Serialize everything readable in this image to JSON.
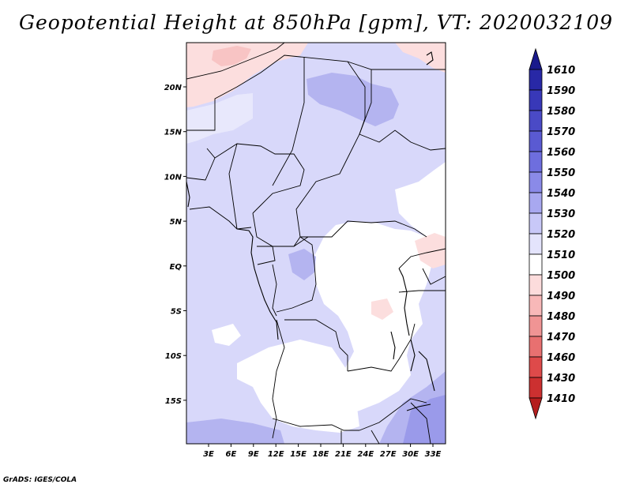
{
  "title": "Geopotential Height at 850hPa [gpm], VT: 2020032109",
  "credit": "GrADS: IGES/COLA",
  "lat_ticks": [
    "20N",
    "15N",
    "10N",
    "5N",
    "EQ",
    "5S",
    "10S",
    "15S"
  ],
  "lon_ticks": [
    "3E",
    "6E",
    "9E",
    "12E",
    "15E",
    "18E",
    "21E",
    "24E",
    "27E",
    "30E",
    "33E"
  ],
  "colorbar": {
    "levels": [
      "1610",
      "1590",
      "1580",
      "1570",
      "1560",
      "1550",
      "1540",
      "1530",
      "1520",
      "1510",
      "1500",
      "1490",
      "1480",
      "1470",
      "1460",
      "1430",
      "1410"
    ],
    "colors": [
      "#1a1a8c",
      "#2828a6",
      "#3838b8",
      "#4a4ac6",
      "#5a5ad2",
      "#6e6ede",
      "#8a8ae8",
      "#a8a8f0",
      "#c8c8f8",
      "#e4e4fc",
      "#ffffff",
      "#fcdcdc",
      "#f8b8b8",
      "#f09494",
      "#e87070",
      "#de4a4a",
      "#cc3030",
      "#b41e1e"
    ]
  },
  "palette": {
    "base": "#d8d8fa",
    "light": "#e8e8fc",
    "mid": "#b4b4f0",
    "deep": "#9a9aea",
    "pink": "#fcdede",
    "pink2": "#f8c4c4",
    "white": "#ffffff"
  }
}
